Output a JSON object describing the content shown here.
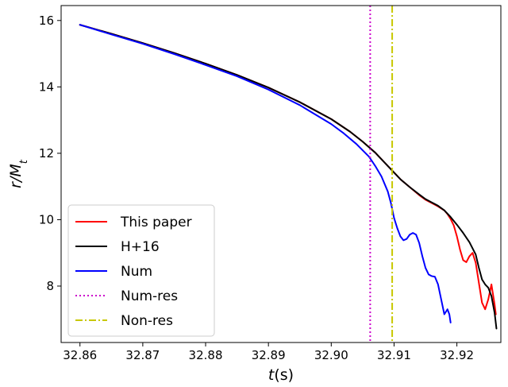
{
  "chart_data": {
    "type": "line",
    "xlabel": "t(s)",
    "ylabel": "r/M_t",
    "xlim": [
      32.857,
      32.927
    ],
    "ylim": [
      6.3,
      16.45
    ],
    "x_ticks": [
      32.86,
      32.87,
      32.88,
      32.89,
      32.9,
      32.91,
      32.92
    ],
    "x_tick_labels": [
      "32.86",
      "32.87",
      "32.88",
      "32.89",
      "32.90",
      "32.91",
      "32.92"
    ],
    "y_ticks": [
      8,
      10,
      12,
      14,
      16
    ],
    "y_tick_labels": [
      "8",
      "10",
      "12",
      "14",
      "16"
    ],
    "grid": false,
    "legend_position": "lower-left",
    "series": [
      {
        "name": "This paper",
        "color": "#ff0000",
        "style": "solid",
        "points": [
          [
            32.86,
            15.87
          ],
          [
            32.865,
            15.6
          ],
          [
            32.87,
            15.32
          ],
          [
            32.875,
            15.02
          ],
          [
            32.88,
            14.7
          ],
          [
            32.885,
            14.36
          ],
          [
            32.89,
            13.98
          ],
          [
            32.895,
            13.54
          ],
          [
            32.9,
            13.03
          ],
          [
            32.903,
            12.65
          ],
          [
            32.905,
            12.35
          ],
          [
            32.907,
            12.02
          ],
          [
            32.909,
            11.62
          ],
          [
            32.911,
            11.22
          ],
          [
            32.9125,
            10.98
          ],
          [
            32.914,
            10.74
          ],
          [
            32.915,
            10.6
          ],
          [
            32.916,
            10.5
          ],
          [
            32.917,
            10.4
          ],
          [
            32.918,
            10.28
          ],
          [
            32.9185,
            10.17
          ],
          [
            32.919,
            10.02
          ],
          [
            32.9195,
            9.83
          ],
          [
            32.92,
            9.5
          ],
          [
            32.9205,
            9.1
          ],
          [
            32.921,
            8.78
          ],
          [
            32.9215,
            8.72
          ],
          [
            32.922,
            8.9
          ],
          [
            32.9225,
            9.0
          ],
          [
            32.923,
            8.7
          ],
          [
            32.9235,
            8.1
          ],
          [
            32.924,
            7.5
          ],
          [
            32.9245,
            7.3
          ],
          [
            32.925,
            7.6
          ],
          [
            32.9255,
            8.05
          ],
          [
            32.926,
            7.45
          ],
          [
            32.9262,
            7.15
          ]
        ]
      },
      {
        "name": "H+16",
        "color": "#000000",
        "style": "solid",
        "points": [
          [
            32.86,
            15.87
          ],
          [
            32.865,
            15.6
          ],
          [
            32.87,
            15.32
          ],
          [
            32.875,
            15.02
          ],
          [
            32.88,
            14.7
          ],
          [
            32.885,
            14.36
          ],
          [
            32.89,
            13.98
          ],
          [
            32.895,
            13.54
          ],
          [
            32.9,
            13.03
          ],
          [
            32.903,
            12.65
          ],
          [
            32.905,
            12.35
          ],
          [
            32.907,
            12.02
          ],
          [
            32.909,
            11.62
          ],
          [
            32.911,
            11.22
          ],
          [
            32.9125,
            10.98
          ],
          [
            32.914,
            10.76
          ],
          [
            32.915,
            10.62
          ],
          [
            32.916,
            10.52
          ],
          [
            32.917,
            10.42
          ],
          [
            32.918,
            10.28
          ],
          [
            32.919,
            10.08
          ],
          [
            32.92,
            9.85
          ],
          [
            32.921,
            9.6
          ],
          [
            32.922,
            9.32
          ],
          [
            32.923,
            8.95
          ],
          [
            32.9235,
            8.55
          ],
          [
            32.924,
            8.2
          ],
          [
            32.9245,
            8.05
          ],
          [
            32.925,
            7.95
          ],
          [
            32.9255,
            7.7
          ],
          [
            32.926,
            7.2
          ],
          [
            32.9263,
            6.72
          ]
        ]
      },
      {
        "name": "Num",
        "color": "#0000ff",
        "style": "solid",
        "points": [
          [
            32.86,
            15.87
          ],
          [
            32.865,
            15.58
          ],
          [
            32.87,
            15.3
          ],
          [
            32.875,
            14.99
          ],
          [
            32.88,
            14.66
          ],
          [
            32.885,
            14.32
          ],
          [
            32.89,
            13.92
          ],
          [
            32.895,
            13.45
          ],
          [
            32.9,
            12.88
          ],
          [
            32.902,
            12.6
          ],
          [
            32.904,
            12.28
          ],
          [
            32.906,
            11.9
          ],
          [
            32.907,
            11.62
          ],
          [
            32.908,
            11.3
          ],
          [
            32.909,
            10.85
          ],
          [
            32.9095,
            10.5
          ],
          [
            32.91,
            10.05
          ],
          [
            32.9105,
            9.75
          ],
          [
            32.911,
            9.5
          ],
          [
            32.9115,
            9.38
          ],
          [
            32.912,
            9.42
          ],
          [
            32.9125,
            9.55
          ],
          [
            32.913,
            9.6
          ],
          [
            32.9135,
            9.55
          ],
          [
            32.914,
            9.3
          ],
          [
            32.9145,
            8.9
          ],
          [
            32.915,
            8.55
          ],
          [
            32.9155,
            8.35
          ],
          [
            32.916,
            8.3
          ],
          [
            32.9165,
            8.28
          ],
          [
            32.917,
            8.05
          ],
          [
            32.9175,
            7.6
          ],
          [
            32.918,
            7.15
          ],
          [
            32.9185,
            7.3
          ],
          [
            32.9188,
            7.15
          ],
          [
            32.919,
            6.9
          ]
        ]
      }
    ],
    "vlines": [
      {
        "name": "Num-res",
        "x": 32.9062,
        "color": "#cc00cc",
        "style": "dotted"
      },
      {
        "name": "Non-res",
        "x": 32.9097,
        "color": "#c8c800",
        "style": "dashdot"
      }
    ]
  }
}
